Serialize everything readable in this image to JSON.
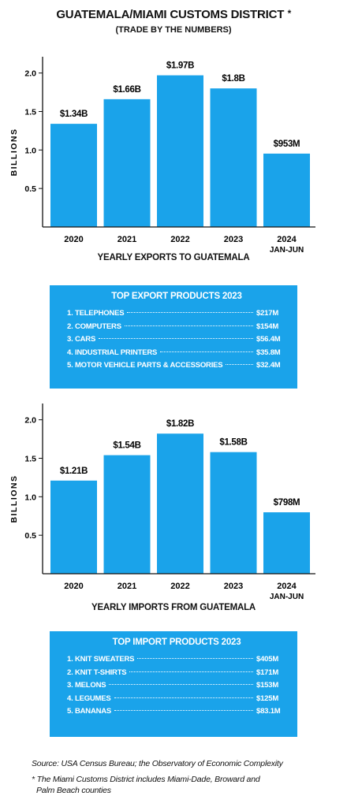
{
  "header": {
    "title": "GUATEMALA/MIAMI CUSTOMS DISTRICT",
    "title_mark": "*",
    "subtitle": "(TRADE BY THE NUMBERS)"
  },
  "colors": {
    "bar": "#1aa3ea",
    "axis": "#111111"
  },
  "chart_data": [
    {
      "type": "bar",
      "title": "",
      "xlabel": "YEARLY EXPORTS TO GUATEMALA",
      "ylabel": "BILLIONS",
      "categories": [
        "2020",
        "2021",
        "2022",
        "2023",
        "2024"
      ],
      "category_sublabels": [
        "",
        "",
        "",
        "",
        "JAN-JUN"
      ],
      "values": [
        1.34,
        1.66,
        1.97,
        1.8,
        0.953
      ],
      "data_labels": [
        "$1.34B",
        "$1.66B",
        "$1.97B",
        "$1.8B",
        "$953M"
      ],
      "ylim": [
        0,
        2.15
      ],
      "yticks": [
        0.5,
        1.0,
        1.5,
        2.0
      ],
      "ytick_labels": [
        "0.5",
        "1.0",
        "1.5",
        "2.0"
      ],
      "grid": false
    },
    {
      "type": "bar",
      "title": "",
      "xlabel": "YEARLY IMPORTS FROM GUATEMALA",
      "ylabel": "BILLIONS",
      "categories": [
        "2020",
        "2021",
        "2022",
        "2023",
        "2024"
      ],
      "category_sublabels": [
        "",
        "",
        "",
        "",
        "JAN-JUN"
      ],
      "values": [
        1.21,
        1.54,
        1.82,
        1.58,
        0.798
      ],
      "data_labels": [
        "$1.21B",
        "$1.54B",
        "$1.82B",
        "$1.58B",
        "$798M"
      ],
      "ylim": [
        0,
        2.15
      ],
      "yticks": [
        0.5,
        1.0,
        1.5,
        2.0
      ],
      "ytick_labels": [
        "0.5",
        "1.0",
        "1.5",
        "2.0"
      ],
      "grid": false
    }
  ],
  "export_products": {
    "title": "TOP EXPORT PRODUCTS 2023",
    "items": [
      {
        "name": "1. TELEPHONES",
        "value": "$217M"
      },
      {
        "name": "2. COMPUTERS",
        "value": "$154M"
      },
      {
        "name": "3. CARS",
        "value": "$56.4M"
      },
      {
        "name": "4. INDUSTRIAL PRINTERS",
        "value": "$35.8M"
      },
      {
        "name": "5. MOTOR VEHICLE PARTS & ACCESSORIES",
        "value": "$32.4M"
      }
    ]
  },
  "import_products": {
    "title": "TOP IMPORT PRODUCTS 2023",
    "items": [
      {
        "name": "1. KNIT SWEATERS",
        "value": "$405M"
      },
      {
        "name": "2. KNIT T-SHIRTS",
        "value": "$171M"
      },
      {
        "name": "3. MELONS",
        "value": "$153M"
      },
      {
        "name": "4. LEGUMES",
        "value": "$125M"
      },
      {
        "name": "5. BANANAS",
        "value": "$83.1M"
      }
    ]
  },
  "footer": {
    "source": "Source: USA Census Bureau; the Observatory of Economic Complexity",
    "footnote_line1": "* The Miami Customs District includes Miami-Dade, Broward and",
    "footnote_line2": "Palm Beach counties"
  }
}
